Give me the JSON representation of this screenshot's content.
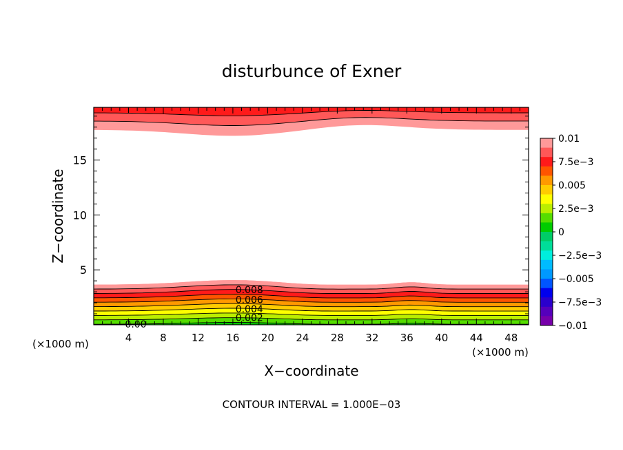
{
  "chart_data": {
    "type": "filled-contour",
    "title": "disturbunce of Exner",
    "xlabel": "X−coordinate",
    "ylabel": "Z−coordinate",
    "x_unit_label": "(×1000 m)",
    "x_unit_label_right": "(×1000 m)",
    "footer": "CONTOUR INTERVAL = 1.000E−03",
    "xlim": [
      0,
      50
    ],
    "ylim": [
      0,
      19.8
    ],
    "x_ticks": [
      4,
      8,
      12,
      16,
      20,
      24,
      28,
      32,
      36,
      40,
      44,
      48
    ],
    "y_ticks": [
      5,
      10,
      15
    ],
    "contour_interval": 0.001,
    "contour_labels": [
      {
        "text": "0.008",
        "x": 16.3,
        "z": 3.2
      },
      {
        "text": "0.006",
        "x": 16.3,
        "z": 2.3
      },
      {
        "text": "0.004",
        "x": 16.3,
        "z": 1.45
      },
      {
        "text": "0.002",
        "x": 16.3,
        "z": 0.65
      },
      {
        "text": "0.00",
        "x": 3.6,
        "z": 0.05
      }
    ],
    "colorbar": {
      "range": [
        -0.01,
        0.01
      ],
      "tick_labels": [
        "0.01",
        "7.5e−3",
        "0.005",
        "2.5e−3",
        "0",
        "−2.5e−3",
        "−0.005",
        "−7.5e−3",
        "−0.01"
      ],
      "colors": [
        "#ff9999",
        "#ff5858",
        "#ff1a1a",
        "#ff5500",
        "#ff9900",
        "#ffcc00",
        "#ffff00",
        "#bbee00",
        "#55dd00",
        "#00cc00",
        "#00cc66",
        "#00dd99",
        "#00eedd",
        "#00bbff",
        "#0099ff",
        "#0055ff",
        "#0000ee",
        "#2a00cc",
        "#5500bb",
        "#7700aa"
      ]
    }
  }
}
